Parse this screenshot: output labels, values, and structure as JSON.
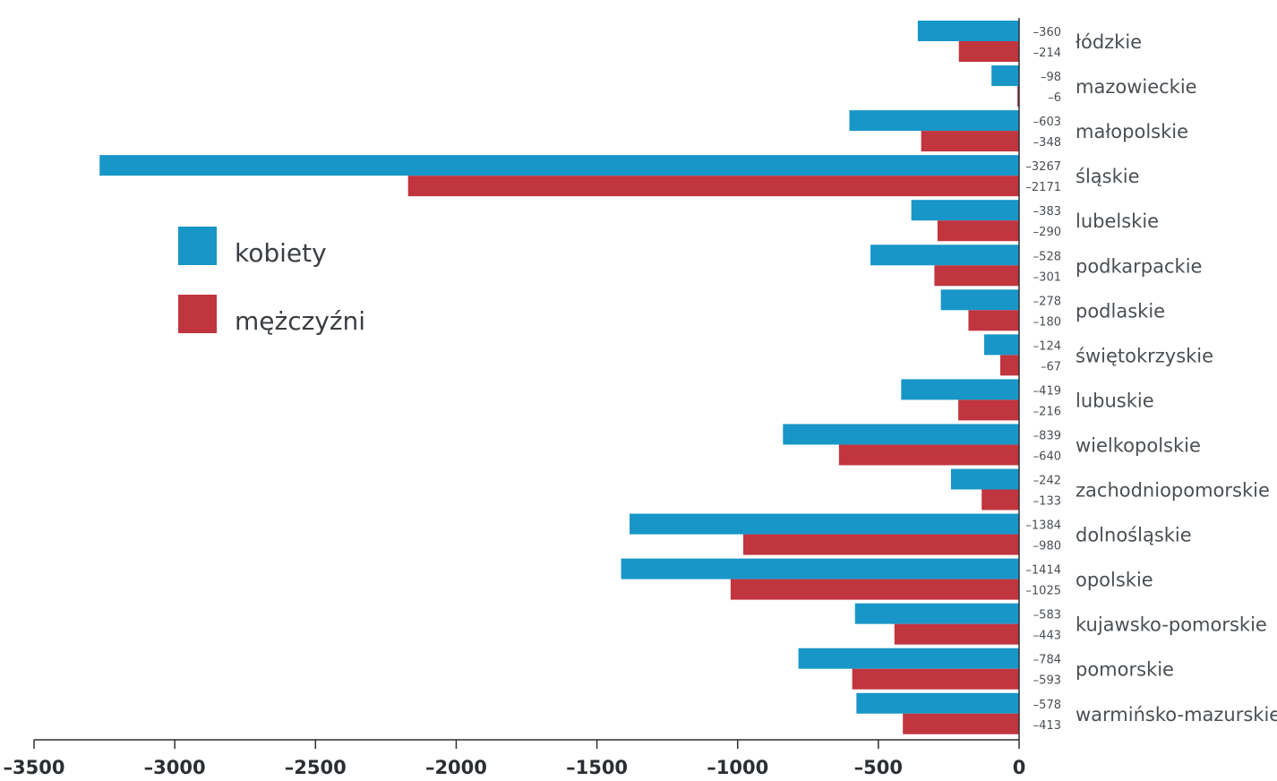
{
  "chart_data": {
    "type": "bar",
    "orientation": "horizontal",
    "categories": [
      "łódzkie",
      "mazowieckie",
      "małopolskie",
      "śląskie",
      "lubelskie",
      "podkarpackie",
      "podlaskie",
      "świętokrzyskie",
      "lubuskie",
      "wielkopolskie",
      "zachodniopomorskie",
      "dolnośląskie",
      "opolskie",
      "kujawsko-pomorskie",
      "pomorskie",
      "warmińsko-mazurskie"
    ],
    "series": [
      {
        "name": "kobiety",
        "color": "#1896c8",
        "values": [
          -360,
          -98,
          -603,
          -3267,
          -383,
          -528,
          -278,
          -124,
          -419,
          -839,
          -242,
          -1384,
          -1414,
          -583,
          -784,
          -578
        ]
      },
      {
        "name": "mężczyźni",
        "color": "#c1353f",
        "values": [
          -214,
          -6,
          -348,
          -2171,
          -290,
          -301,
          -180,
          -67,
          -216,
          -640,
          -133,
          -980,
          -1025,
          -443,
          -593,
          -413
        ]
      }
    ],
    "value_labels": {
      "kobiety": [
        "–360",
        "–98",
        "–603",
        "–3267",
        "–383",
        "–528",
        "–278",
        "–124",
        "–419",
        "–839",
        "–242",
        "–1384",
        "–1414",
        "–583",
        "–784",
        "–578"
      ],
      "mężczyźni": [
        "–214",
        "–6",
        "–348",
        "–2171",
        "–290",
        "–301",
        "–180",
        "–67",
        "–216",
        "–640",
        "–133",
        "–980",
        "–1025",
        "–443",
        "–593",
        "–413"
      ]
    },
    "xlim": [
      -3500,
      0
    ],
    "x_ticks": [
      -3500,
      -3000,
      -2500,
      -2000,
      -1500,
      -1000,
      -500,
      0
    ],
    "x_tick_labels": [
      "–3500",
      "–3000",
      "–2500",
      "–2000",
      "–1500",
      "–1000",
      "–500",
      "0"
    ],
    "title": "",
    "xlabel": "",
    "ylabel": "",
    "grid": false,
    "legend_position": "left"
  }
}
